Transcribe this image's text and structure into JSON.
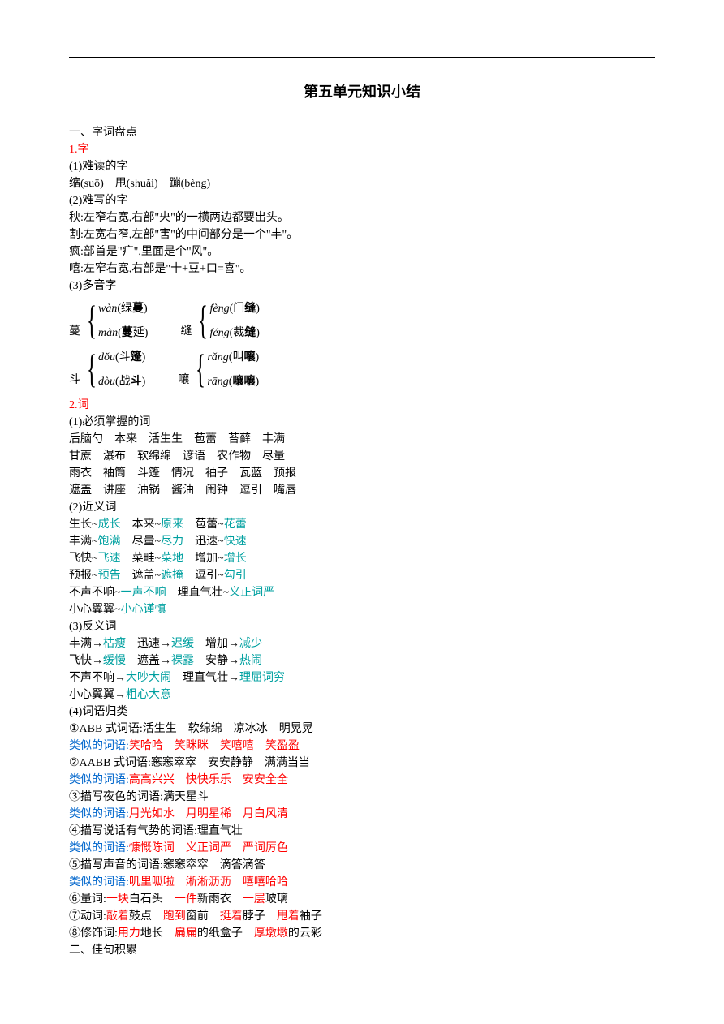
{
  "title": "第五单元知识小结",
  "section1_heading": "一、字词盘点",
  "s1_zi": "1.字",
  "s1_1_label": "(1)难读的字",
  "s1_1_content": "缩(suō)　甩(shuǎi)　蹦(bèng)",
  "s1_2_label": "(2)难写的字",
  "s1_2_l1": "秧:左窄右宽,右部\"央\"的一横两边都要出头。",
  "s1_2_l2": "割:左宽右窄,左部\"害\"的中间部分是一个\"丰\"。",
  "s1_2_l3": "疯:部首是\"疒\",里面是个\"风\"。",
  "s1_2_l4": "嘻:左窄右宽,右部是\"十+豆+口=喜\"。",
  "s1_3_label": "(3)多音字",
  "poly": [
    {
      "char": "蔓",
      "items": [
        {
          "py": "wàn",
          "word": "绿",
          "bold": "蔓",
          "after": ")"
        },
        {
          "py": "màn",
          "word": "",
          "bold": "蔓",
          "after": "延)"
        }
      ]
    },
    {
      "char": "缝",
      "items": [
        {
          "py": "fèng",
          "word": "门",
          "bold": "缝",
          "after": ")"
        },
        {
          "py": "féng",
          "word": "裁",
          "bold": "缝",
          "after": ")"
        }
      ]
    },
    {
      "char": "斗",
      "items": [
        {
          "py": "dǒu",
          "word": "斗",
          "bold": "篷",
          "after": ")"
        },
        {
          "py": "dòu",
          "word": "战",
          "bold": "斗",
          "after": ")"
        }
      ]
    },
    {
      "char": "嚷",
      "items": [
        {
          "py": "rǎng",
          "word": "叫",
          "bold": "嚷",
          "after": ")"
        },
        {
          "py": "rāng",
          "word": "",
          "bold": "嚷嚷",
          "after": ")"
        }
      ]
    }
  ],
  "s2_ci": "2.词",
  "s2_1_label": "(1)必须掌握的词",
  "s2_1_l1": "后脑勺　本来　活生生　苞蕾　苔藓　丰满",
  "s2_1_l2": "甘蔗　瀑布　软绵绵　谚语　农作物　尽量",
  "s2_1_l3": "雨衣　袖筒　斗篷　情况　袖子　瓦蓝　预报",
  "s2_1_l4": "遮盖　讲座　油锅　酱油　闹钟　逗引　嘴唇",
  "s2_2_label": "(2)近义词",
  "syn": [
    [
      [
        "生长",
        "成长"
      ],
      [
        "本来",
        "原来"
      ],
      [
        "苞蕾",
        "花蕾"
      ]
    ],
    [
      [
        "丰满",
        "饱满"
      ],
      [
        "尽量",
        "尽力"
      ],
      [
        "迅速",
        "快速"
      ]
    ],
    [
      [
        "飞快",
        "飞速"
      ],
      [
        "菜畦",
        "菜地"
      ],
      [
        "增加",
        "增长"
      ]
    ],
    [
      [
        "预报",
        "预告"
      ],
      [
        "遮盖",
        "遮掩"
      ],
      [
        "逗引",
        "勾引"
      ]
    ],
    [
      [
        "不声不响",
        "一声不响"
      ],
      [
        "理直气壮",
        "义正词严"
      ]
    ],
    [
      [
        "小心翼翼",
        "小心谨慎"
      ]
    ]
  ],
  "s2_3_label": "(3)反义词",
  "ant": [
    [
      [
        "丰满",
        "枯瘦"
      ],
      [
        "迅速",
        "迟缓"
      ],
      [
        "增加",
        "减少"
      ]
    ],
    [
      [
        "飞快",
        "缓慢"
      ],
      [
        "遮盖",
        "裸露"
      ],
      [
        "安静",
        "热闹"
      ]
    ],
    [
      [
        "不声不响",
        "大吵大闹"
      ],
      [
        "理直气壮",
        "理屈词穷"
      ]
    ],
    [
      [
        "小心翼翼",
        "粗心大意"
      ]
    ]
  ],
  "s2_4_label": "(4)词语归类",
  "cat1_a": "①ABB 式词语:活生生　软绵绵　凉冰冰　明晃晃",
  "cat1_b_label": "类似的词语:",
  "cat1_b": "笑哈哈　笑眯眯　笑嘻嘻　笑盈盈",
  "cat2_a": "②AABB 式词语:窸窸窣窣　安安静静　满满当当",
  "cat2_b": "高高兴兴　快快乐乐　安安全全",
  "cat3_a": "③描写夜色的词语:满天星斗",
  "cat3_b": "月光如水　月明星稀　月白风清",
  "cat4_a": "④描写说话有气势的词语:理直气壮",
  "cat4_b": "慷慨陈词　义正词严　严词厉色",
  "cat5_a": "⑤描写声音的词语:窸窸窣窣　滴答滴答",
  "cat5_b": "叽里呱啦　淅淅沥沥　嘻嘻哈哈",
  "cat6_pairs": [
    [
      "一块",
      "白石头"
    ],
    [
      "一件",
      "新雨衣"
    ],
    [
      "一层",
      "玻璃"
    ]
  ],
  "cat6_prefix": "⑥量词:",
  "cat7_prefix": "⑦动词:",
  "cat7_pairs": [
    [
      "敲着",
      "鼓点"
    ],
    [
      "跑到",
      "窗前"
    ],
    [
      "挺着",
      "脖子"
    ],
    [
      "甩着",
      "袖子"
    ]
  ],
  "cat8_prefix": "⑧修饰词:",
  "cat8_pairs": [
    [
      "用力",
      "地长"
    ],
    [
      "扁扁",
      "的纸盒子"
    ],
    [
      "厚墩墩",
      "的云彩"
    ]
  ],
  "section2_heading": "二、佳句积累"
}
